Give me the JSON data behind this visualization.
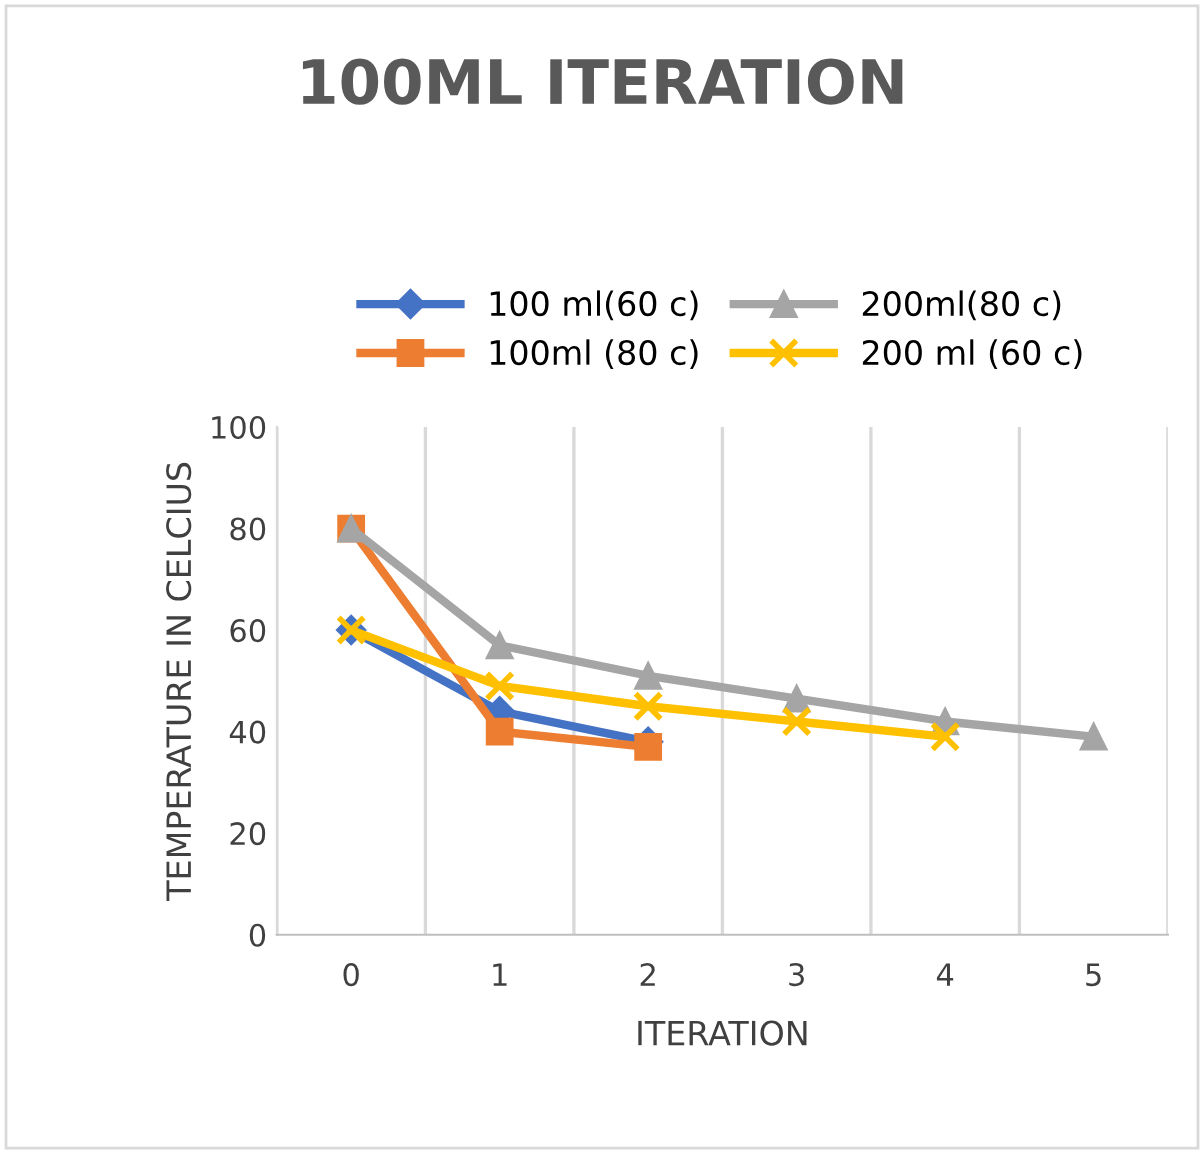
{
  "chart_data": {
    "type": "line",
    "title": "100ML ITERATION",
    "xlabel": "ITERATION",
    "ylabel": "TEMPERATURE IN CELCIUS",
    "categories": [
      "0",
      "1",
      "2",
      "3",
      "4",
      "5"
    ],
    "series": [
      {
        "name": "100 ml(60 c)",
        "color": "#4472c4",
        "marker": "diamond",
        "values": [
          60,
          44,
          38,
          null,
          null,
          null
        ]
      },
      {
        "name": "100ml (80 c)",
        "color": "#ed7d31",
        "marker": "square",
        "values": [
          80,
          40,
          37,
          null,
          null,
          null
        ]
      },
      {
        "name": "200ml(80 c)",
        "color": "#a5a5a5",
        "marker": "triangle",
        "values": [
          80,
          57,
          51,
          46.5,
          42,
          39
        ]
      },
      {
        "name": "200 ml (60 c)",
        "color": "#ffc000",
        "marker": "cross",
        "values": [
          60,
          49,
          45,
          42,
          39,
          null
        ]
      }
    ],
    "ylim": [
      0,
      100
    ],
    "yticks": [
      0,
      20,
      40,
      60,
      80,
      100
    ],
    "grid": "x",
    "legend": "top",
    "line_style": "solid"
  }
}
